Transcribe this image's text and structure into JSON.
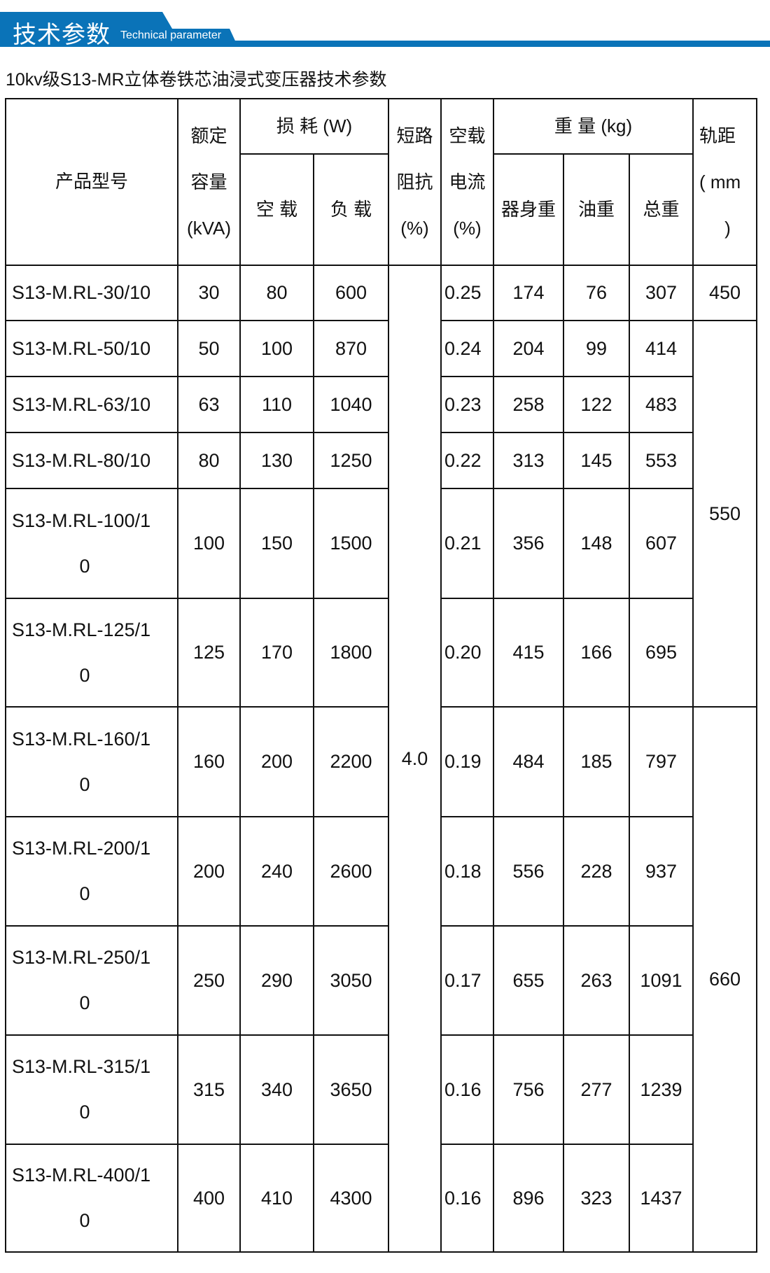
{
  "banner": {
    "title": "技术参数",
    "subtitle": "Technical parameter",
    "accent": "#0a73b8"
  },
  "doc_title": "10kv级S13-MR立体卷铁芯油浸式变压器技术参数",
  "headers": {
    "model": "产品型号",
    "capacity": [
      "额定",
      "容量",
      "(kVA)"
    ],
    "loss": "损 耗 (W)",
    "loss_noload": "空 载",
    "loss_load": "负 载",
    "impedance": [
      "短路",
      "阻抗",
      "(%)"
    ],
    "noload_current": [
      "空载",
      "电流",
      "(%)"
    ],
    "weight": "重 量 (kg)",
    "weight_body": "器身重",
    "weight_oil": "油重",
    "weight_total": "总重",
    "gauge": [
      "轨距",
      "( mm",
      ")"
    ]
  },
  "impedance_value": "4.0",
  "gauge_groups": [
    {
      "value": "450",
      "rows": 1
    },
    {
      "value": "550",
      "rows": 5
    },
    {
      "value": "660",
      "rows": 5
    }
  ],
  "rows": [
    {
      "model": "S13-M.RL-30/10",
      "capacity": "30",
      "noload": "80",
      "load": "600",
      "current": "0.25",
      "body": "174",
      "oil": "76",
      "total": "307"
    },
    {
      "model": "S13-M.RL-50/10",
      "capacity": "50",
      "noload": "100",
      "load": "870",
      "current": "0.24",
      "body": "204",
      "oil": "99",
      "total": "414"
    },
    {
      "model": "S13-M.RL-63/10",
      "capacity": "63",
      "noload": "110",
      "load": "1040",
      "current": "0.23",
      "body": "258",
      "oil": "122",
      "total": "483"
    },
    {
      "model": "S13-M.RL-80/10",
      "capacity": "80",
      "noload": "130",
      "load": "1250",
      "current": "0.22",
      "body": "313",
      "oil": "145",
      "total": "553"
    },
    {
      "model": "S13-M.RL-100/10",
      "capacity": "100",
      "noload": "150",
      "load": "1500",
      "current": "0.21",
      "body": "356",
      "oil": "148",
      "total": "607"
    },
    {
      "model": "S13-M.RL-125/10",
      "capacity": "125",
      "noload": "170",
      "load": "1800",
      "current": "0.20",
      "body": "415",
      "oil": "166",
      "total": "695"
    },
    {
      "model": "S13-M.RL-160/10",
      "capacity": "160",
      "noload": "200",
      "load": "2200",
      "current": "0.19",
      "body": "484",
      "oil": "185",
      "total": "797"
    },
    {
      "model": "S13-M.RL-200/10",
      "capacity": "200",
      "noload": "240",
      "load": "2600",
      "current": "0.18",
      "body": "556",
      "oil": "228",
      "total": "937"
    },
    {
      "model": "S13-M.RL-250/10",
      "capacity": "250",
      "noload": "290",
      "load": "3050",
      "current": "0.17",
      "body": "655",
      "oil": "263",
      "total": "1091"
    },
    {
      "model": "S13-M.RL-315/10",
      "capacity": "315",
      "noload": "340",
      "load": "3650",
      "current": "0.16",
      "body": "756",
      "oil": "277",
      "total": "1239"
    },
    {
      "model": "S13-M.RL-400/10",
      "capacity": "400",
      "noload": "410",
      "load": "4300",
      "current": "0.16",
      "body": "896",
      "oil": "323",
      "total": "1437"
    }
  ]
}
